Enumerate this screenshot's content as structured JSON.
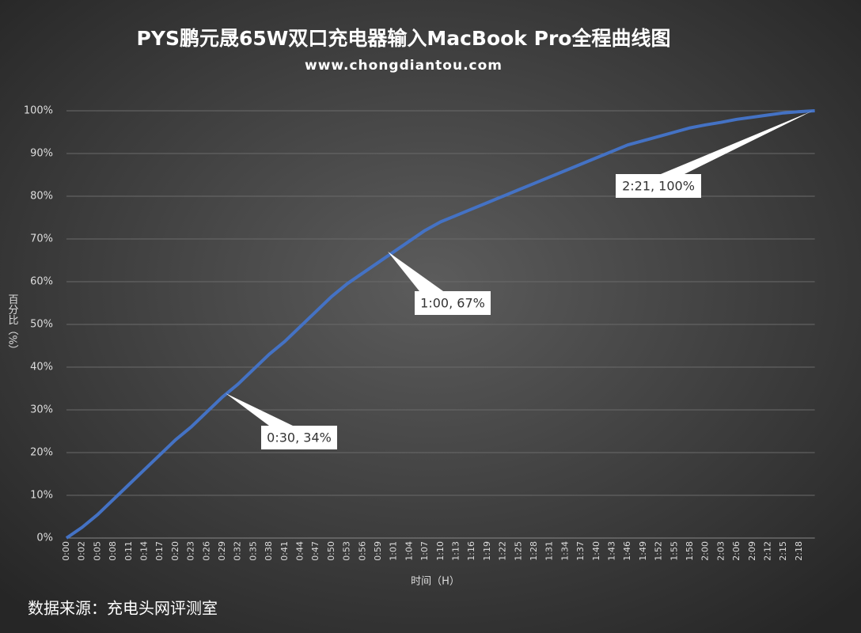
{
  "chart_data": {
    "type": "line",
    "title": "PYS鹏元晟65W双口充电器输入MacBook Pro全程曲线图",
    "subtitle": "www.chongdiantou.com",
    "y_axis_label": "百分比（%）",
    "x_axis_label": "时间（H）",
    "source": "数据来源：充电头网评测室",
    "categories": [
      "0:00",
      "0:02",
      "0:05",
      "0:08",
      "0:11",
      "0:14",
      "0:17",
      "0:20",
      "0:23",
      "0:26",
      "0:29",
      "0:32",
      "0:35",
      "0:38",
      "0:41",
      "0:44",
      "0:47",
      "0:50",
      "0:53",
      "0:56",
      "0:59",
      "1:01",
      "1:04",
      "1:07",
      "1:10",
      "1:13",
      "1:16",
      "1:19",
      "1:22",
      "1:25",
      "1:28",
      "1:31",
      "1:34",
      "1:37",
      "1:40",
      "1:43",
      "1:46",
      "1:49",
      "1:52",
      "1:55",
      "1:58",
      "2:00",
      "2:03",
      "2:06",
      "2:09",
      "2:12",
      "2:15",
      "2:18",
      null
    ],
    "series": [
      {
        "name": "百分比",
        "color": "#4472c4",
        "values": [
          0,
          2.5,
          5.5,
          9,
          12.5,
          16,
          19.5,
          23,
          26,
          29.5,
          33,
          36,
          39.5,
          43,
          46,
          49.5,
          53,
          56.5,
          59.5,
          62,
          64.5,
          67,
          69.5,
          72,
          74,
          75.5,
          77,
          78.5,
          80,
          81.5,
          83,
          84.5,
          86,
          87.5,
          89,
          90.5,
          92,
          93,
          94,
          95,
          96,
          96.7,
          97.3,
          98,
          98.5,
          99,
          99.5,
          99.8,
          100
        ]
      }
    ],
    "ylim": [
      0,
      100
    ],
    "yticks": [
      {
        "value": 0,
        "label": "0%"
      },
      {
        "value": 10,
        "label": "10%"
      },
      {
        "value": 20,
        "label": "20%"
      },
      {
        "value": 30,
        "label": "30%"
      },
      {
        "value": 40,
        "label": "40%"
      },
      {
        "value": 50,
        "label": "50%"
      },
      {
        "value": 60,
        "label": "60%"
      },
      {
        "value": 70,
        "label": "70%"
      },
      {
        "value": 80,
        "label": "80%"
      },
      {
        "value": 90,
        "label": "90%"
      },
      {
        "value": 100,
        "label": "100%"
      }
    ],
    "grid": true,
    "annotations": [
      "0:30, 34%",
      "1:00, 67%",
      "2:21, 100%"
    ]
  }
}
